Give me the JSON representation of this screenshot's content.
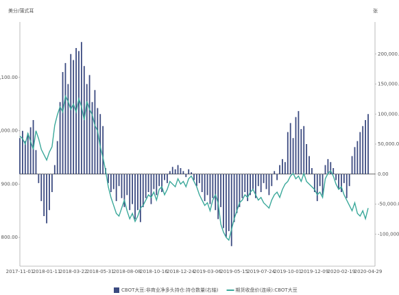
{
  "chart_data": {
    "type": "combo",
    "y_label": "美分/蒲式耳",
    "y2_label": "张",
    "legend": "bottom",
    "categories": [
      "2017-11-01",
      null,
      null,
      null,
      null,
      null,
      null,
      null,
      null,
      null,
      "2018-01-11",
      null,
      null,
      null,
      null,
      null,
      null,
      null,
      null,
      null,
      "2018-03-22",
      null,
      null,
      null,
      null,
      null,
      null,
      null,
      null,
      null,
      "2018-05-31",
      null,
      null,
      null,
      null,
      null,
      null,
      null,
      null,
      null,
      "2018-08-08",
      null,
      null,
      null,
      null,
      null,
      null,
      null,
      null,
      null,
      "2018-10-16",
      null,
      null,
      null,
      null,
      null,
      null,
      null,
      null,
      null,
      "2018-12-24",
      null,
      null,
      null,
      null,
      null,
      null,
      null,
      null,
      null,
      "2019-03-06",
      null,
      null,
      null,
      null,
      null,
      null,
      null,
      null,
      null,
      "2019-05-15",
      null,
      null,
      null,
      null,
      null,
      null,
      null,
      null,
      null,
      "2019-07-24",
      null,
      null,
      null,
      null,
      null,
      null,
      null,
      null,
      null,
      "2019-10-01",
      null,
      null,
      null,
      null,
      null,
      null,
      null,
      null,
      null,
      "2019-12-09",
      null,
      null,
      null,
      null,
      null,
      null,
      null,
      null,
      null,
      "2020-02-19",
      null,
      null,
      null,
      null,
      null,
      null,
      null,
      null,
      null,
      "2020-04-29"
    ],
    "ylim": [
      750,
      1200
    ],
    "yticks": [
      {
        "value": 800,
        "label": "800.00"
      },
      {
        "value": 900,
        "label": "900.00"
      },
      {
        "value": 1000,
        "label": "1,000.00"
      },
      {
        "value": 1100,
        "label": "1,100.00"
      }
    ],
    "y2lim": [
      -150000,
      250000
    ],
    "y2ticks": [
      {
        "value": -100000,
        "label": "-100,000.00"
      },
      {
        "value": -50000,
        "label": "-50,000.00"
      },
      {
        "value": 0,
        "label": "0.00"
      },
      {
        "value": 50000,
        "label": "50,000.00"
      },
      {
        "value": 100000,
        "label": "100,000.00"
      },
      {
        "value": 150000,
        "label": "150,000.00"
      },
      {
        "value": 200000,
        "label": "200,000.00"
      }
    ],
    "series": [
      {
        "name": "CBOT大豆:非商业净多头持仓:持仓数量(右轴)",
        "type": "bar",
        "axis": "y2",
        "color": "#3b4a80",
        "values": [
          60000,
          72000,
          55000,
          68000,
          78000,
          90000,
          40000,
          -15000,
          -45000,
          -70000,
          -82000,
          -60000,
          -30000,
          15000,
          55000,
          120000,
          170000,
          185000,
          150000,
          200000,
          190000,
          210000,
          205000,
          220000,
          180000,
          150000,
          165000,
          120000,
          140000,
          110000,
          100000,
          80000,
          10000,
          -15000,
          -30000,
          -25000,
          -45000,
          -20000,
          -40000,
          -55000,
          -35000,
          -60000,
          -50000,
          -75000,
          -60000,
          -80000,
          -55000,
          -40000,
          -30000,
          -50000,
          -25000,
          -35000,
          -20000,
          -30000,
          -10000,
          -15000,
          5000,
          12000,
          8000,
          15000,
          10000,
          5000,
          -5000,
          8000,
          3000,
          -10000,
          -20000,
          -15000,
          -30000,
          -45000,
          -35000,
          -50000,
          -40000,
          -60000,
          -75000,
          -55000,
          -90000,
          -105000,
          -95000,
          -120000,
          -80000,
          -65000,
          -55000,
          -40000,
          -30000,
          -45000,
          -35000,
          -25000,
          -40000,
          -20000,
          -30000,
          -15000,
          -25000,
          -35000,
          -20000,
          5000,
          -10000,
          15000,
          25000,
          20000,
          70000,
          85000,
          60000,
          95000,
          105000,
          75000,
          80000,
          50000,
          30000,
          10000,
          -30000,
          -45000,
          -20000,
          -35000,
          15000,
          25000,
          20000,
          10000,
          -10000,
          -25000,
          -30000,
          -15000,
          -40000,
          -20000,
          30000,
          45000,
          55000,
          70000,
          80000,
          90000,
          100000
        ]
      },
      {
        "name": "期货收盘价(连续):CBOT大豆",
        "type": "line",
        "axis": "y",
        "color": "#3aa89a",
        "values": [
          990,
          985,
          975,
          995,
          980,
          965,
          1000,
          985,
          965,
          955,
          945,
          960,
          970,
          1010,
          1030,
          1045,
          1035,
          1065,
          1055,
          1040,
          1050,
          1035,
          1060,
          1045,
          1020,
          1055,
          1040,
          1030,
          1010,
          1000,
          970,
          950,
          925,
          895,
          875,
          860,
          845,
          840,
          855,
          870,
          850,
          835,
          845,
          830,
          840,
          855,
          860,
          870,
          880,
          875,
          885,
          870,
          890,
          895,
          880,
          890,
          905,
          900,
          895,
          910,
          900,
          905,
          895,
          910,
          915,
          905,
          895,
          880,
          870,
          860,
          865,
          850,
          870,
          880,
          865,
          825,
          810,
          800,
          795,
          815,
          835,
          850,
          865,
          870,
          880,
          875,
          885,
          890,
          880,
          870,
          875,
          865,
          860,
          855,
          870,
          880,
          885,
          875,
          890,
          900,
          905,
          915,
          920,
          910,
          915,
          905,
          920,
          905,
          900,
          895,
          890,
          880,
          885,
          875,
          910,
          920,
          925,
          915,
          900,
          890,
          895,
          880,
          870,
          860,
          850,
          865,
          845,
          840,
          850,
          835,
          855
        ]
      }
    ]
  }
}
